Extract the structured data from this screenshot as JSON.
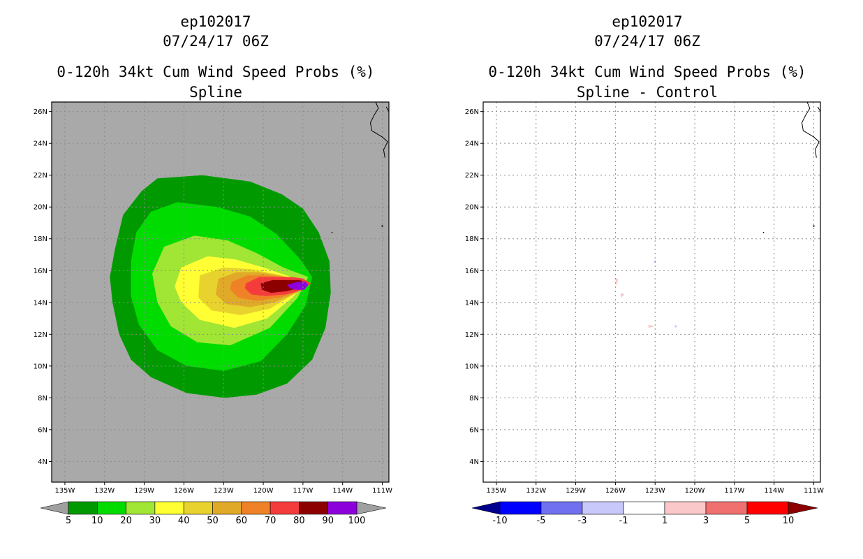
{
  "left": {
    "header": {
      "storm_id": "ep102017",
      "datetime": "07/24/17 06Z",
      "product": "0-120h 34kt Cum Wind Speed Probs (%)",
      "subtitle": "Spline"
    }
  },
  "right": {
    "header": {
      "storm_id": "ep102017",
      "datetime": "07/24/17 06Z",
      "product": "0-120h 34kt Cum Wind Speed Probs (%)",
      "subtitle": "Spline - Control"
    }
  },
  "chart_data": [
    {
      "type": "heatmap",
      "name": "spline",
      "title": "0-120h 34kt Cum Wind Speed Probs (%)",
      "subtitle": "Spline",
      "x_ticks": [
        "135W",
        "132W",
        "129W",
        "126W",
        "123W",
        "120W",
        "117W",
        "114W",
        "111W"
      ],
      "y_ticks": [
        "4N",
        "6N",
        "8N",
        "10N",
        "12N",
        "14N",
        "16N",
        "18N",
        "20N",
        "22N",
        "24N",
        "26N"
      ],
      "xlim_lon": [
        -136.0,
        -110.5
      ],
      "ylim_lat": [
        2.7,
        26.6
      ],
      "grid": true,
      "background_color": "#a9a9a9",
      "colorbar": {
        "labels": [
          "5",
          "10",
          "20",
          "30",
          "40",
          "50",
          "60",
          "70",
          "80",
          "90",
          "100"
        ],
        "colors": [
          "#009a00",
          "#00dc00",
          "#a1e535",
          "#ffff33",
          "#e8d32e",
          "#e0aa28",
          "#ef8227",
          "#f53c3c",
          "#8c0000",
          "#8c00dc"
        ],
        "end_color": "#a0a0a0"
      },
      "contours": [
        {
          "level": 5,
          "color": "#009a00",
          "points": [
            [
              -128.0,
              21.8
            ],
            [
              -124.6,
              22.0
            ],
            [
              -121.0,
              21.6
            ],
            [
              -118.6,
              20.8
            ],
            [
              -117.0,
              19.9
            ],
            [
              -115.8,
              18.4
            ],
            [
              -115.0,
              16.6
            ],
            [
              -114.9,
              14.6
            ],
            [
              -115.3,
              12.4
            ],
            [
              -116.3,
              10.4
            ],
            [
              -118.2,
              8.9
            ],
            [
              -120.5,
              8.2
            ],
            [
              -122.9,
              8.0
            ],
            [
              -125.8,
              8.3
            ],
            [
              -128.5,
              9.3
            ],
            [
              -130.0,
              10.4
            ],
            [
              -130.9,
              12.0
            ],
            [
              -131.4,
              14.0
            ],
            [
              -131.6,
              15.6
            ],
            [
              -131.2,
              17.4
            ],
            [
              -130.6,
              19.5
            ],
            [
              -129.2,
              21.0
            ]
          ]
        },
        {
          "level": 10,
          "color": "#00dc00",
          "points": [
            [
              -128.5,
              19.7
            ],
            [
              -126.5,
              20.3
            ],
            [
              -123.5,
              20.0
            ],
            [
              -121.0,
              19.4
            ],
            [
              -119.0,
              18.3
            ],
            [
              -117.2,
              16.7
            ],
            [
              -116.3,
              15.6
            ],
            [
              -116.8,
              13.8
            ],
            [
              -118.2,
              12.0
            ],
            [
              -120.2,
              10.3
            ],
            [
              -123.0,
              9.7
            ],
            [
              -125.8,
              10.0
            ],
            [
              -128.0,
              11.0
            ],
            [
              -129.4,
              12.6
            ],
            [
              -130.0,
              14.4
            ],
            [
              -130.0,
              16.6
            ],
            [
              -129.6,
              18.4
            ]
          ]
        },
        {
          "level": 20,
          "color": "#a1e535",
          "points": [
            [
              -127.5,
              17.5
            ],
            [
              -125.2,
              18.2
            ],
            [
              -122.7,
              17.9
            ],
            [
              -120.5,
              17.1
            ],
            [
              -118.5,
              16.2
            ],
            [
              -116.6,
              15.6
            ],
            [
              -117.4,
              14.3
            ],
            [
              -119.5,
              12.4
            ],
            [
              -122.5,
              11.3
            ],
            [
              -125.0,
              11.5
            ],
            [
              -127.0,
              12.5
            ],
            [
              -128.0,
              14.0
            ],
            [
              -128.4,
              15.8
            ]
          ]
        },
        {
          "level": 30,
          "color": "#ffff33",
          "points": [
            [
              -126.2,
              16.2
            ],
            [
              -124.2,
              16.9
            ],
            [
              -122.1,
              16.7
            ],
            [
              -120.0,
              16.2
            ],
            [
              -117.9,
              15.6
            ],
            [
              -116.7,
              15.3
            ],
            [
              -117.8,
              14.3
            ],
            [
              -119.7,
              13.0
            ],
            [
              -122.2,
              12.4
            ],
            [
              -124.8,
              12.9
            ],
            [
              -126.2,
              14.0
            ],
            [
              -126.7,
              15.0
            ]
          ]
        },
        {
          "level": 40,
          "color": "#e8d32e",
          "points": [
            [
              -124.8,
              15.7
            ],
            [
              -123.0,
              16.2
            ],
            [
              -121.0,
              16.1
            ],
            [
              -119.2,
              15.8
            ],
            [
              -117.7,
              15.5
            ],
            [
              -116.7,
              15.2
            ],
            [
              -117.7,
              14.5
            ],
            [
              -119.5,
              13.6
            ],
            [
              -121.7,
              13.2
            ],
            [
              -123.9,
              13.5
            ],
            [
              -124.9,
              14.3
            ]
          ]
        },
        {
          "level": 50,
          "color": "#e0aa28",
          "points": [
            [
              -123.4,
              15.5
            ],
            [
              -122.0,
              15.9
            ],
            [
              -120.4,
              15.9
            ],
            [
              -118.8,
              15.7
            ],
            [
              -117.5,
              15.5
            ],
            [
              -116.7,
              15.2
            ],
            [
              -117.5,
              14.6
            ],
            [
              -119.1,
              14.0
            ],
            [
              -121.0,
              13.7
            ],
            [
              -122.8,
              13.9
            ],
            [
              -123.6,
              14.5
            ]
          ]
        },
        {
          "level": 60,
          "color": "#ef8227",
          "points": [
            [
              -122.4,
              15.3
            ],
            [
              -121.2,
              15.7
            ],
            [
              -119.8,
              15.7
            ],
            [
              -118.4,
              15.6
            ],
            [
              -117.2,
              15.4
            ],
            [
              -116.6,
              15.2
            ],
            [
              -117.3,
              14.7
            ],
            [
              -118.8,
              14.3
            ],
            [
              -120.5,
              14.1
            ],
            [
              -121.9,
              14.3
            ],
            [
              -122.5,
              14.8
            ]
          ]
        },
        {
          "level": 70,
          "color": "#f53c3c",
          "points": [
            [
              -121.3,
              15.2
            ],
            [
              -120.3,
              15.6
            ],
            [
              -119.0,
              15.6
            ],
            [
              -117.8,
              15.6
            ],
            [
              -117.0,
              15.5
            ],
            [
              -116.4,
              15.2
            ],
            [
              -117.0,
              14.8
            ],
            [
              -118.3,
              14.5
            ],
            [
              -119.8,
              14.4
            ],
            [
              -120.9,
              14.5
            ],
            [
              -121.4,
              14.9
            ]
          ]
        },
        {
          "level": 80,
          "color": "#8c0000",
          "points": [
            [
              -120.2,
              15.2
            ],
            [
              -119.3,
              15.4
            ],
            [
              -118.1,
              15.4
            ],
            [
              -117.2,
              15.4
            ],
            [
              -116.8,
              15.2
            ],
            [
              -117.2,
              14.9
            ],
            [
              -118.3,
              14.7
            ],
            [
              -119.4,
              14.6
            ],
            [
              -120.1,
              14.8
            ]
          ]
        },
        {
          "level": 90,
          "color": "#8c00dc",
          "points": [
            [
              -118.2,
              15.1
            ],
            [
              -117.4,
              15.3
            ],
            [
              -116.8,
              15.3
            ],
            [
              -116.6,
              15.1
            ],
            [
              -116.9,
              14.8
            ],
            [
              -117.6,
              14.8
            ],
            [
              -118.0,
              14.9
            ]
          ]
        }
      ]
    },
    {
      "type": "heatmap",
      "name": "difference",
      "title": "0-120h 34kt Cum Wind Speed Probs (%)",
      "subtitle": "Spline - Control",
      "x_ticks": [
        "135W",
        "132W",
        "129W",
        "126W",
        "123W",
        "120W",
        "117W",
        "114W",
        "111W"
      ],
      "y_ticks": [
        "4N",
        "6N",
        "8N",
        "10N",
        "12N",
        "14N",
        "16N",
        "18N",
        "20N",
        "22N",
        "24N",
        "26N"
      ],
      "xlim_lon": [
        -136.0,
        -110.5
      ],
      "ylim_lat": [
        2.7,
        26.6
      ],
      "grid": true,
      "background_color": "#ffffff",
      "colorbar": {
        "labels": [
          "-10",
          "-5",
          "-3",
          "-1",
          "1",
          "3",
          "5",
          "10"
        ],
        "colors": [
          "#0000ff",
          "#7070f0",
          "#c8c8fa",
          "#ffffff",
          "#fac8c8",
          "#f07070",
          "#ff0000"
        ],
        "left_end_color": "#00008c",
        "right_end_color": "#8c0000"
      },
      "contours": [
        {
          "level": 1,
          "color": "#fac8c8",
          "points": [
            [
              -126.0,
              15.5
            ],
            [
              -125.8,
              15.5
            ],
            [
              -125.9,
              15.0
            ]
          ]
        },
        {
          "level": 1,
          "color": "#fac8c8",
          "points": [
            [
              -125.6,
              14.6
            ],
            [
              -125.3,
              14.5
            ],
            [
              -125.6,
              14.3
            ]
          ]
        },
        {
          "level": 1,
          "color": "#fac8c8",
          "points": [
            [
              -123.5,
              12.6
            ],
            [
              -123.0,
              12.5
            ],
            [
              -123.5,
              12.4
            ]
          ]
        },
        {
          "level": -1,
          "color": "#c8c8fa",
          "points": [
            [
              -123.0,
              16.7
            ],
            [
              -122.9,
              16.5
            ],
            [
              -123.1,
              16.5
            ]
          ]
        },
        {
          "level": -1,
          "color": "#c8c8fa",
          "points": [
            [
              -121.5,
              12.6
            ],
            [
              -121.3,
              12.5
            ],
            [
              -121.5,
              12.4
            ]
          ]
        }
      ]
    }
  ]
}
